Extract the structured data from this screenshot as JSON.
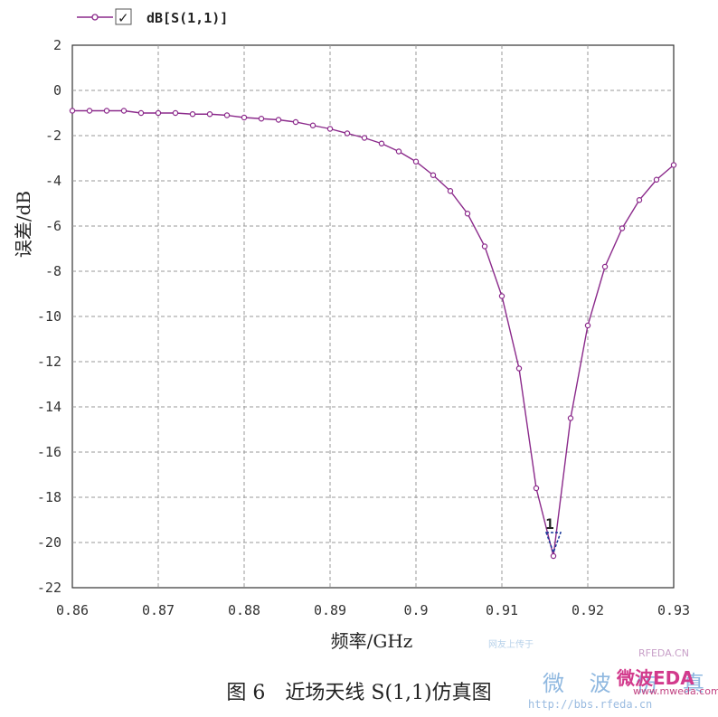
{
  "chart_data": {
    "type": "line",
    "legend": {
      "label": "dB[S(1,1)]",
      "position": "top-left",
      "checked": true
    },
    "xlabel": "频率/GHz",
    "ylabel": "误差/dB",
    "xlim": [
      0.86,
      0.93
    ],
    "ylim": [
      -22,
      2
    ],
    "xticks": [
      "0.86",
      "0.87",
      "0.88",
      "0.89",
      "0.9",
      "0.91",
      "0.92",
      "0.93"
    ],
    "yticks": [
      "2",
      "0",
      "-2",
      "-4",
      "-6",
      "-8",
      "-10",
      "-12",
      "-14",
      "-16",
      "-18",
      "-20",
      "-22"
    ],
    "grid": true,
    "series": [
      {
        "name": "dB[S(1,1)]",
        "color": "#8b2a8b",
        "x": [
          0.86,
          0.862,
          0.864,
          0.866,
          0.868,
          0.87,
          0.872,
          0.874,
          0.876,
          0.878,
          0.88,
          0.882,
          0.884,
          0.886,
          0.888,
          0.89,
          0.892,
          0.894,
          0.896,
          0.898,
          0.9,
          0.902,
          0.904,
          0.906,
          0.908,
          0.91,
          0.912,
          0.914,
          0.916,
          0.918,
          0.92,
          0.922,
          0.924,
          0.926,
          0.928,
          0.93
        ],
        "y": [
          -0.9,
          -0.9,
          -0.9,
          -0.9,
          -1.0,
          -1.0,
          -1.0,
          -1.05,
          -1.05,
          -1.1,
          -1.2,
          -1.25,
          -1.3,
          -1.4,
          -1.55,
          -1.7,
          -1.9,
          -2.1,
          -2.35,
          -2.7,
          -3.15,
          -3.75,
          -4.45,
          -5.45,
          -6.9,
          -9.1,
          -12.3,
          -17.6,
          -20.6,
          -14.5,
          -10.4,
          -7.8,
          -6.1,
          -4.85,
          -3.95,
          -3.3
        ]
      }
    ],
    "marker": {
      "label": "1",
      "x": 0.916,
      "y": -20.6
    }
  },
  "caption": "图 6　近场天线 S(1,1)仿真图",
  "watermark": {
    "sub": "网友上传于",
    "main": "微 波 仿 真",
    "brand1": "RFEDA.CN",
    "brand2": "微波EDA",
    "url1": "www.mweda.com",
    "url2": "http://bbs.rfeda.cn"
  }
}
